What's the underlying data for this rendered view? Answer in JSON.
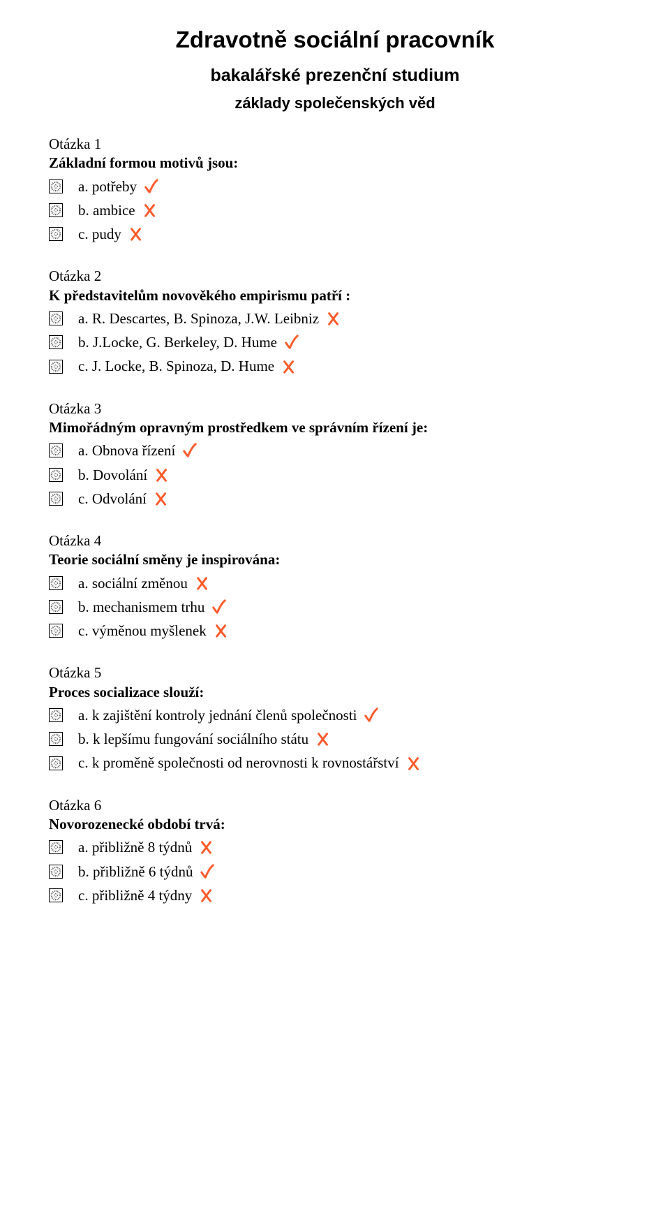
{
  "header": {
    "title": "Zdravotně sociální pracovník",
    "subtitle": "bakalářské prezenční studium",
    "section": "základy společenských věd"
  },
  "colors": {
    "text": "#000000",
    "background": "#ffffff",
    "mark": "#ff5a2a",
    "radio_pattern": "#666666"
  },
  "fonts": {
    "heading_family": "Verdana, Geneva, sans-serif",
    "body_family": "Times New Roman, Times, serif",
    "title_size_pt": 25,
    "subtitle_size_pt": 19,
    "section_size_pt": 17,
    "body_size_pt": 16
  },
  "questions": [
    {
      "number": "Otázka 1",
      "prompt": "Základní formou motivů jsou:",
      "options": [
        {
          "label": "a. potřeby",
          "correct": true
        },
        {
          "label": "b. ambice",
          "correct": false
        },
        {
          "label": "c. pudy",
          "correct": false
        }
      ]
    },
    {
      "number": "Otázka 2",
      "prompt": "K představitelům novověkého empirismu patří :",
      "options": [
        {
          "label": "a. R. Descartes, B. Spinoza, J.W. Leibniz",
          "correct": false
        },
        {
          "label": "b. J.Locke, G. Berkeley, D. Hume",
          "correct": true
        },
        {
          "label": "c. J. Locke, B. Spinoza, D. Hume",
          "correct": false
        }
      ]
    },
    {
      "number": "Otázka 3",
      "prompt": "Mimořádným opravným prostředkem ve správním řízení je:",
      "options": [
        {
          "label": "a. Obnova řízení",
          "correct": true
        },
        {
          "label": "b. Dovolání",
          "correct": false
        },
        {
          "label": "c. Odvolání",
          "correct": false
        }
      ]
    },
    {
      "number": "Otázka 4",
      "prompt": "Teorie sociální směny je inspirována:",
      "options": [
        {
          "label": "a. sociální změnou",
          "correct": false
        },
        {
          "label": "b. mechanismem trhu",
          "correct": true
        },
        {
          "label": "c. výměnou myšlenek",
          "correct": false
        }
      ]
    },
    {
      "number": "Otázka 5",
      "prompt": "Proces socializace slouží:",
      "options": [
        {
          "label": "a. k zajištění kontroly jednání členů společnosti",
          "correct": true
        },
        {
          "label": "b. k lepšímu fungování sociálního státu",
          "correct": false
        },
        {
          "label": "c. k proměně společnosti od nerovnosti k rovnostářství",
          "correct": false
        }
      ]
    },
    {
      "number": "Otázka 6",
      "prompt": "Novorozenecké období trvá:",
      "options": [
        {
          "label": "a. přibližně 8 týdnů",
          "correct": false
        },
        {
          "label": "b. přibližně 6 týdnů",
          "correct": true
        },
        {
          "label": "c. přibližně 4 týdny",
          "correct": false
        }
      ]
    }
  ]
}
